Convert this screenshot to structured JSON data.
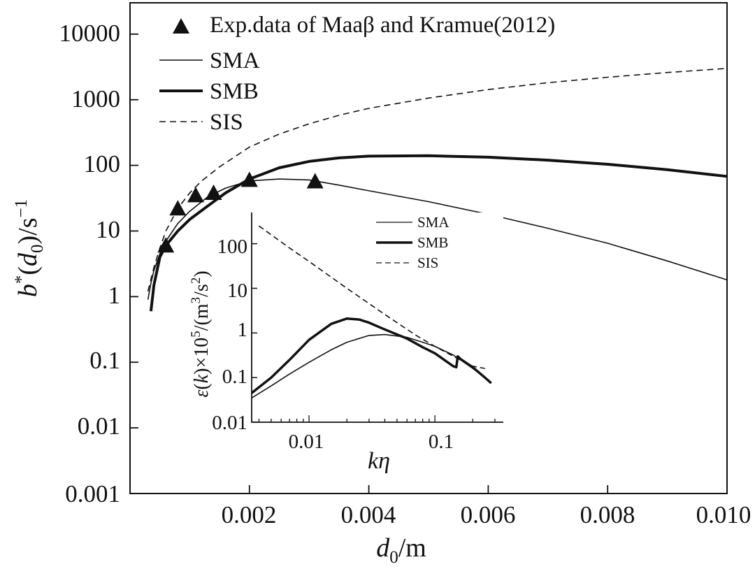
{
  "chart_data": [
    {
      "type": "line",
      "title": "",
      "xlabel": "d0/m",
      "ylabel": "b*(d0)/s-1",
      "xlabel_parts": {
        "base": "d",
        "sub": "0",
        "rest": "/m"
      },
      "ylabel_parts": {
        "b": "b",
        "star": "*",
        "open": "(",
        "d": "d",
        "sub": "0",
        "close": ")/s",
        "sup": "−1"
      },
      "xlim": [
        0,
        0.01
      ],
      "ylim": [
        0.001,
        30000
      ],
      "yscale": "log",
      "x_ticks": [
        0.002,
        0.004,
        0.006,
        0.008,
        0.01
      ],
      "x_tick_labels": [
        "0.002",
        "0.004",
        "0.006",
        "0.008",
        "0.010"
      ],
      "y_ticks": [
        0.001,
        0.01,
        0.1,
        1,
        10,
        100,
        1000,
        10000
      ],
      "y_tick_labels": [
        "0.001",
        "0.01",
        "0.1",
        "1",
        "10",
        "100",
        "1000",
        "10000"
      ],
      "legend_position": "top-left",
      "series": [
        {
          "name": "Exp.data of Maaβ and Kramue(2012)",
          "style": "triangle-marker",
          "x": [
            0.0006,
            0.0008,
            0.0011,
            0.0014,
            0.002,
            0.0031
          ],
          "y": [
            6,
            22,
            35,
            38,
            60,
            57
          ]
        },
        {
          "name": "SMA",
          "style": "thin",
          "x": [
            0.0003,
            0.00035,
            0.0004,
            0.0005,
            0.0006,
            0.0008,
            0.001,
            0.0013,
            0.0016,
            0.002,
            0.0025,
            0.003,
            0.0035,
            0.004,
            0.005,
            0.006,
            0.007,
            0.008,
            0.009,
            0.01
          ],
          "y": [
            0.9,
            1.6,
            2.5,
            4.5,
            7,
            13,
            20,
            33,
            45,
            58,
            62,
            60,
            50,
            41,
            28,
            18,
            11,
            6.5,
            3.5,
            1.8
          ]
        },
        {
          "name": "SMB",
          "style": "thick",
          "x": [
            0.00035,
            0.0004,
            0.0005,
            0.0006,
            0.0008,
            0.001,
            0.0013,
            0.0016,
            0.002,
            0.0025,
            0.003,
            0.0035,
            0.004,
            0.005,
            0.006,
            0.007,
            0.008,
            0.009,
            0.01
          ],
          "y": [
            0.6,
            1.5,
            4,
            6,
            10,
            15,
            24,
            38,
            62,
            92,
            115,
            130,
            138,
            140,
            133,
            120,
            104,
            86,
            68
          ]
        },
        {
          "name": "SIS",
          "style": "dashed",
          "x": [
            0.0003,
            0.0004,
            0.0005,
            0.0006,
            0.0008,
            0.001,
            0.0012,
            0.0015,
            0.002,
            0.0025,
            0.003,
            0.0035,
            0.004,
            0.005,
            0.006,
            0.007,
            0.008,
            0.009,
            0.01
          ],
          "y": [
            1.2,
            2.8,
            5.5,
            10,
            22,
            38,
            58,
            95,
            190,
            300,
            430,
            580,
            740,
            1060,
            1430,
            1820,
            2200,
            2600,
            3000
          ]
        }
      ]
    },
    {
      "type": "line",
      "title": "",
      "xlabel": "kη",
      "ylabel": "ε(k)×10^5/(m3/s2)",
      "ylabel_parts": {
        "eps": "ε",
        "open": "(",
        "k": "k",
        "times": ")×10",
        "sup5": "5",
        "unit1": "/(m",
        "sup3": "3",
        "unit2": "/s",
        "sup2": "2",
        "close": ")"
      },
      "xscale": "log",
      "yscale": "log",
      "xlim": [
        0.0035,
        0.35
      ],
      "ylim": [
        0.01,
        500
      ],
      "x_ticks": [
        0.01,
        0.1
      ],
      "x_tick_labels": [
        "0.01",
        "0.1"
      ],
      "y_ticks": [
        0.01,
        0.1,
        1,
        10,
        100
      ],
      "y_tick_labels": [
        "0.01",
        "0.1",
        "1",
        "10",
        "100"
      ],
      "legend_position": "top-right",
      "series": [
        {
          "name": "SMA",
          "style": "thin",
          "x": [
            0.0035,
            0.005,
            0.007,
            0.01,
            0.015,
            0.02,
            0.03,
            0.04,
            0.06,
            0.08,
            0.1,
            0.14,
            0.15,
            0.16,
            0.2,
            0.25,
            0.28
          ],
          "y": [
            0.035,
            0.065,
            0.12,
            0.22,
            0.42,
            0.62,
            0.88,
            0.92,
            0.8,
            0.62,
            0.5,
            0.32,
            0.28,
            0.25,
            0.16,
            0.1,
            0.075
          ]
        },
        {
          "name": "SMB",
          "style": "thick",
          "x": [
            0.0035,
            0.005,
            0.007,
            0.01,
            0.015,
            0.02,
            0.025,
            0.03,
            0.04,
            0.06,
            0.08,
            0.1,
            0.14,
            0.148,
            0.152,
            0.16,
            0.2,
            0.25,
            0.28
          ],
          "y": [
            0.045,
            0.1,
            0.25,
            0.7,
            1.6,
            2.1,
            2.0,
            1.7,
            1.2,
            0.75,
            0.48,
            0.35,
            0.18,
            0.17,
            0.3,
            0.26,
            0.17,
            0.1,
            0.075
          ]
        },
        {
          "name": "SIS",
          "style": "dashed",
          "x": [
            0.004,
            0.007,
            0.01,
            0.02,
            0.04,
            0.07,
            0.1,
            0.15,
            0.2,
            0.25
          ],
          "y": [
            250,
            80,
            40,
            10,
            2.6,
            0.9,
            0.5,
            0.27,
            0.18,
            0.16
          ]
        }
      ]
    }
  ]
}
